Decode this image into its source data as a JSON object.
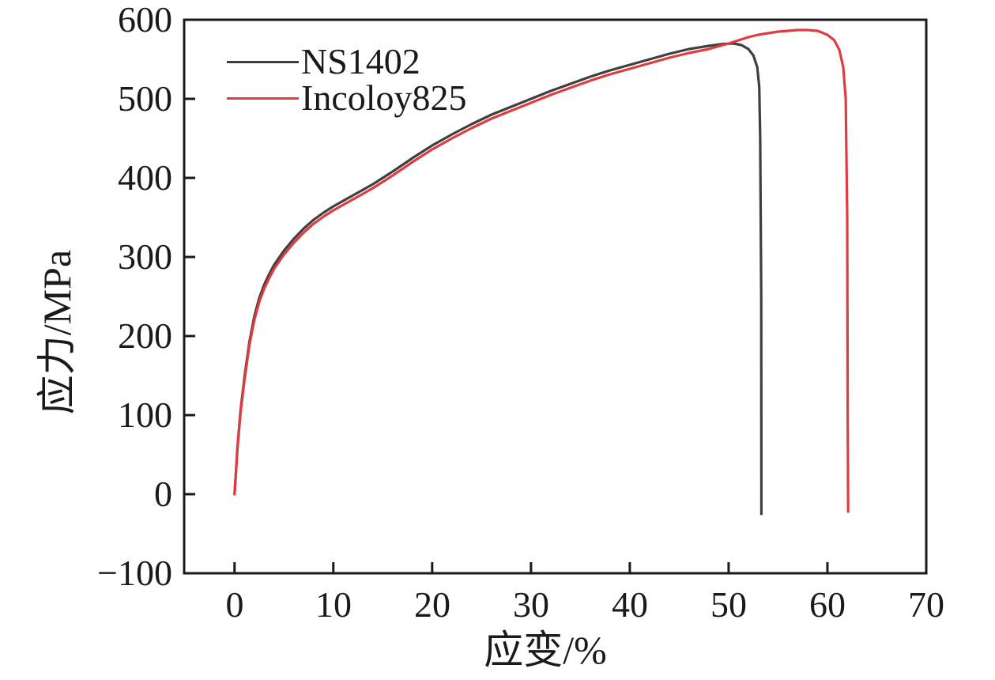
{
  "axes": {
    "x_label": "应变/%",
    "y_label": "应力/MPa",
    "x_tick_labels": [
      "0",
      "10",
      "20",
      "30",
      "40",
      "50",
      "60",
      "70"
    ],
    "y_tick_labels": [
      "600",
      "500",
      "400",
      "300",
      "200",
      "100",
      "0",
      "−100"
    ]
  },
  "legend": {
    "items": [
      {
        "label": "NS1402",
        "color": "#3f3f3f"
      },
      {
        "label": "Incoloy825",
        "color": "#e03c40"
      }
    ]
  },
  "colors": {
    "frame": "#1a1a1a",
    "background": "#ffffff",
    "ns1402_curve": "#3f3f3f",
    "incoloy825_curve": "#e03c40"
  },
  "chart_data": {
    "type": "line",
    "title": "",
    "xlabel": "应变/%",
    "ylabel": "应力/MPa",
    "xlim": [
      -5.1,
      70
    ],
    "ylim": [
      -100,
      600
    ],
    "xticks": [
      0,
      10,
      20,
      30,
      40,
      50,
      60,
      70
    ],
    "yticks": [
      -100,
      0,
      100,
      200,
      300,
      400,
      500,
      600
    ],
    "grid": false,
    "tick_direction": "in",
    "legend_position": "upper-left-inside",
    "series": [
      {
        "name": "NS1402",
        "color": "#3f3f3f",
        "x": [
          0,
          0.3,
          0.6,
          1,
          1.5,
          2,
          2.5,
          3,
          3.5,
          4,
          5,
          6,
          7,
          8,
          9,
          10,
          12,
          14,
          16,
          18,
          20,
          22,
          24,
          26,
          28,
          30,
          32,
          34,
          36,
          38,
          40,
          42,
          44,
          46,
          48,
          49.5,
          50.5,
          51.3,
          52,
          52.5,
          52.9,
          53.1,
          53.2,
          53.3,
          53.32
        ],
        "y": [
          0,
          60,
          105,
          148,
          192,
          225,
          248,
          265,
          278,
          290,
          308,
          323,
          336,
          347,
          356,
          364,
          378,
          392,
          408,
          425,
          441,
          455,
          468,
          480,
          490,
          500,
          510,
          519,
          528,
          536,
          543,
          550,
          557,
          563,
          567,
          569.5,
          570,
          568,
          563,
          555,
          540,
          515,
          450,
          250,
          -25
        ]
      },
      {
        "name": "Incoloy825",
        "color": "#e03c40",
        "x": [
          0,
          0.3,
          0.6,
          1,
          1.5,
          2,
          2.5,
          3,
          3.5,
          4,
          5,
          6,
          7,
          8,
          9,
          10,
          12,
          14,
          16,
          18,
          20,
          22,
          24,
          26,
          28,
          30,
          32,
          34,
          36,
          38,
          40,
          42,
          44,
          46,
          48,
          50,
          51,
          52,
          53,
          54,
          55,
          56,
          57,
          58,
          59,
          60,
          60.7,
          61.2,
          61.6,
          61.85,
          62,
          62.05,
          62.1
        ],
        "y": [
          0,
          58,
          102,
          144,
          188,
          220,
          243,
          260,
          273,
          285,
          303,
          318,
          331,
          342,
          351,
          359,
          373,
          387,
          403,
          420,
          436,
          450,
          463,
          475,
          485,
          495,
          505,
          514,
          523,
          531,
          538,
          545,
          552,
          558,
          563,
          570,
          574,
          578,
          581,
          583,
          585,
          586,
          587,
          587,
          586,
          581,
          574,
          562,
          540,
          500,
          350,
          100,
          -22
        ]
      }
    ]
  }
}
